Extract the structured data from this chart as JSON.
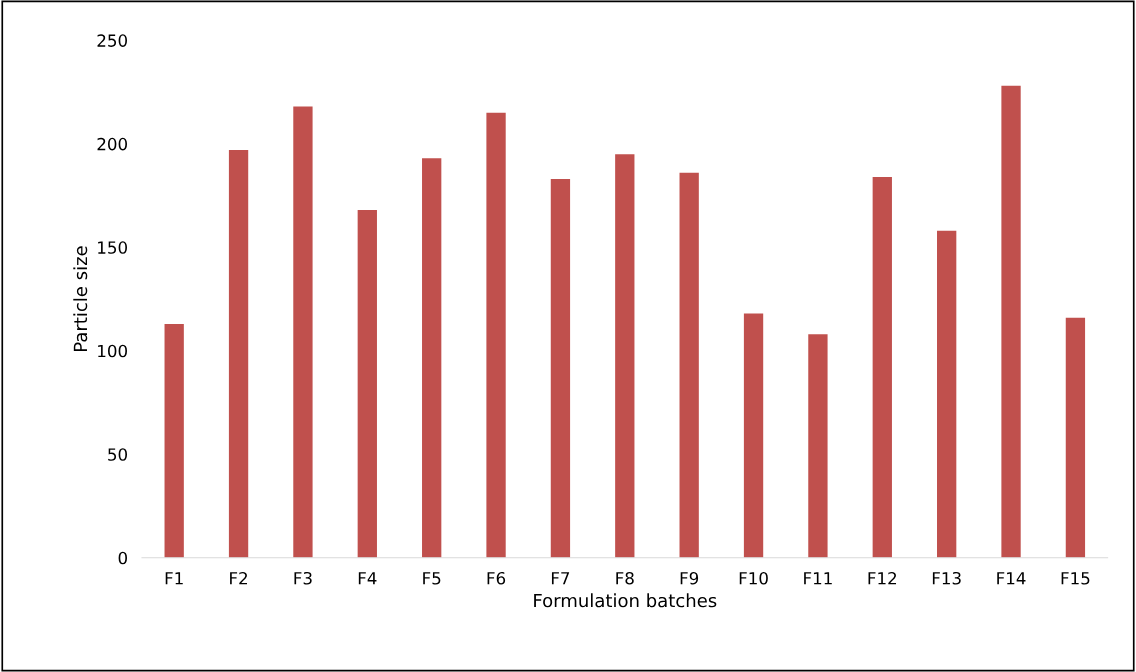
{
  "chart_data": {
    "type": "bar",
    "xlabel": "Formulation batches",
    "ylabel": "Particle size",
    "categories": [
      "F1",
      "F2",
      "F3",
      "F4",
      "F5",
      "F6",
      "F7",
      "F8",
      "F9",
      "F10",
      "F11",
      "F12",
      "F13",
      "F14",
      "F15"
    ],
    "values": [
      113,
      197,
      218,
      168,
      193,
      215,
      183,
      195,
      186,
      118,
      108,
      184,
      158,
      228,
      116
    ],
    "color": "#c0504d",
    "ylim": [
      0,
      250
    ],
    "yticks": [
      0,
      50,
      100,
      150,
      200,
      250
    ],
    "grid": false
  }
}
